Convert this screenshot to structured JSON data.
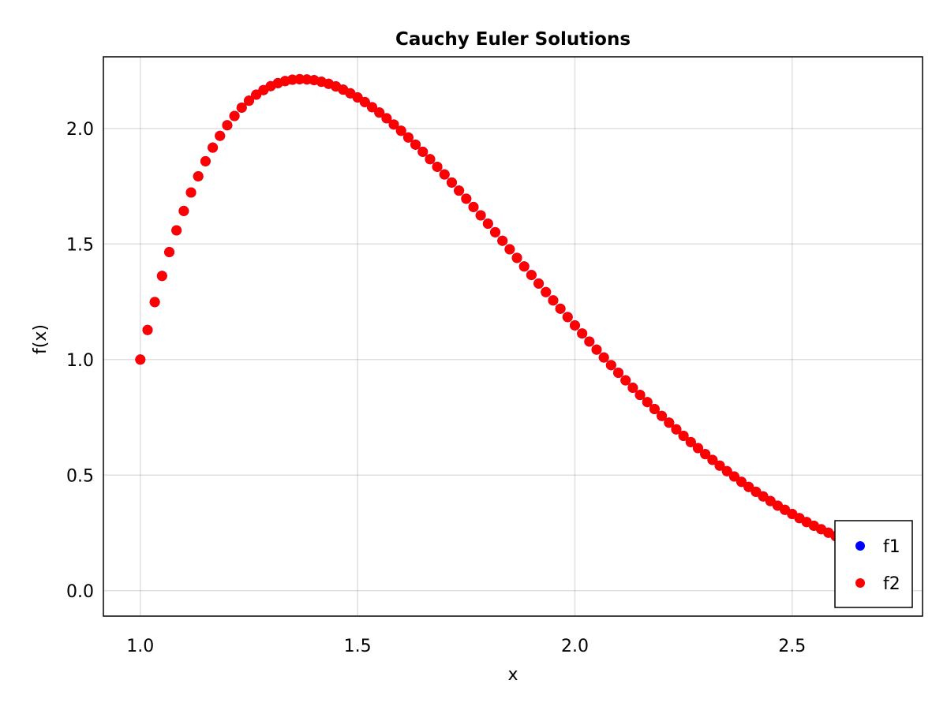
{
  "chart_data": {
    "type": "scatter",
    "title": "Cauchy Euler Solutions",
    "xlabel": "x",
    "ylabel": "f(x)",
    "xlim": [
      0.915,
      2.8
    ],
    "ylim": [
      -0.11,
      2.31
    ],
    "xticks": [
      1.0,
      1.5,
      2.0,
      2.5
    ],
    "yticks": [
      0.0,
      0.5,
      1.0,
      1.5,
      2.0
    ],
    "xtick_labels": [
      "1.0",
      "1.5",
      "2.0",
      "2.5"
    ],
    "ytick_labels": [
      "0.0",
      "0.5",
      "1.0",
      "1.5",
      "2.0"
    ],
    "grid": true,
    "legend_position": "bottom-right",
    "colors": {
      "f1": "#0000ff",
      "f2": "#ff0000"
    },
    "x": [
      1.0,
      1.0167,
      1.0333,
      1.05,
      1.0667,
      1.0833,
      1.1,
      1.1167,
      1.1333,
      1.15,
      1.1667,
      1.1833,
      1.2,
      1.2167,
      1.2333,
      1.25,
      1.2667,
      1.2833,
      1.3,
      1.3167,
      1.3333,
      1.35,
      1.3667,
      1.3833,
      1.4,
      1.4167,
      1.4333,
      1.45,
      1.4667,
      1.4833,
      1.5,
      1.5167,
      1.5333,
      1.55,
      1.5667,
      1.5833,
      1.6,
      1.6167,
      1.6333,
      1.65,
      1.6667,
      1.6833,
      1.7,
      1.7167,
      1.7333,
      1.75,
      1.7667,
      1.7833,
      1.8,
      1.8167,
      1.8333,
      1.85,
      1.8667,
      1.8833,
      1.9,
      1.9167,
      1.9333,
      1.95,
      1.9667,
      1.9833,
      2.0,
      2.0167,
      2.0333,
      2.05,
      2.0667,
      2.0833,
      2.1,
      2.1167,
      2.1333,
      2.15,
      2.1667,
      2.1833,
      2.2,
      2.2167,
      2.2333,
      2.25,
      2.2667,
      2.2833,
      2.3,
      2.3167,
      2.3333,
      2.35,
      2.3667,
      2.3833,
      2.4,
      2.4167,
      2.4333,
      2.45,
      2.4667,
      2.4833,
      2.5,
      2.5167,
      2.5333,
      2.55,
      2.5667,
      2.5833,
      2.6,
      2.6167,
      2.6333,
      2.65,
      2.6667,
      2.6833,
      2.7,
      2.7167,
      2.7333,
      2.75
    ],
    "series": [
      {
        "name": "f1",
        "values": [
          1.0,
          1.128,
          1.249,
          1.362,
          1.465,
          1.559,
          1.643,
          1.723,
          1.793,
          1.858,
          1.917,
          1.968,
          2.014,
          2.054,
          2.09,
          2.12,
          2.146,
          2.166,
          2.183,
          2.196,
          2.205,
          2.211,
          2.213,
          2.212,
          2.209,
          2.202,
          2.193,
          2.182,
          2.168,
          2.152,
          2.134,
          2.114,
          2.092,
          2.069,
          2.044,
          2.017,
          1.99,
          1.961,
          1.93,
          1.899,
          1.867,
          1.834,
          1.801,
          1.766,
          1.731,
          1.696,
          1.66,
          1.624,
          1.588,
          1.551,
          1.514,
          1.477,
          1.44,
          1.403,
          1.366,
          1.329,
          1.292,
          1.256,
          1.22,
          1.184,
          1.148,
          1.113,
          1.078,
          1.043,
          1.009,
          0.976,
          0.943,
          0.91,
          0.878,
          0.847,
          0.816,
          0.786,
          0.756,
          0.727,
          0.698,
          0.67,
          0.643,
          0.617,
          0.591,
          0.566,
          0.541,
          0.517,
          0.494,
          0.471,
          0.449,
          0.428,
          0.408,
          0.388,
          0.368,
          0.35,
          0.332,
          0.314,
          0.297,
          0.281,
          0.266,
          0.251,
          0.236,
          0.222,
          0.209,
          0.196,
          0.184,
          0.172,
          0.161,
          0.15,
          0.139,
          0.129
        ]
      },
      {
        "name": "f2",
        "values": [
          1.0,
          1.128,
          1.249,
          1.362,
          1.465,
          1.559,
          1.643,
          1.723,
          1.793,
          1.858,
          1.917,
          1.968,
          2.014,
          2.054,
          2.09,
          2.12,
          2.146,
          2.166,
          2.183,
          2.196,
          2.205,
          2.211,
          2.213,
          2.212,
          2.209,
          2.202,
          2.193,
          2.182,
          2.168,
          2.152,
          2.134,
          2.114,
          2.092,
          2.069,
          2.044,
          2.017,
          1.99,
          1.961,
          1.93,
          1.899,
          1.867,
          1.834,
          1.801,
          1.766,
          1.731,
          1.696,
          1.66,
          1.624,
          1.588,
          1.551,
          1.514,
          1.477,
          1.44,
          1.403,
          1.366,
          1.329,
          1.292,
          1.256,
          1.22,
          1.184,
          1.148,
          1.113,
          1.078,
          1.043,
          1.009,
          0.976,
          0.943,
          0.91,
          0.878,
          0.847,
          0.816,
          0.786,
          0.756,
          0.727,
          0.698,
          0.67,
          0.643,
          0.617,
          0.591,
          0.566,
          0.541,
          0.517,
          0.494,
          0.471,
          0.449,
          0.428,
          0.408,
          0.388,
          0.368,
          0.35,
          0.332,
          0.314,
          0.297,
          0.281,
          0.266,
          0.251,
          0.236,
          0.222,
          0.209,
          0.196,
          0.184,
          0.172,
          0.161,
          0.15,
          0.139,
          0.129
        ]
      }
    ]
  }
}
